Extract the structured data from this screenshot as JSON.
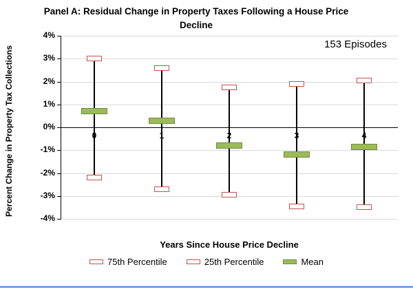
{
  "title": {
    "line1": "Panel A: Residual Change in Property Taxes Following a House Price",
    "line2": "Decline"
  },
  "annotation": "153 Episodes",
  "chart_data": {
    "type": "range-box",
    "categories": [
      "0",
      "1",
      "2",
      "3",
      "4"
    ],
    "series": [
      {
        "name": "75th Percentile",
        "values": [
          3.0,
          2.6,
          1.75,
          1.9,
          2.05
        ]
      },
      {
        "name": "25th Percentile",
        "values": [
          -2.2,
          -2.7,
          -2.95,
          -3.45,
          -3.5
        ]
      },
      {
        "name": "Mean",
        "values": [
          0.7,
          0.3,
          -0.8,
          -1.2,
          -0.85
        ]
      }
    ],
    "title": "Panel A: Residual Change in Property Taxes Following a House Price Decline",
    "xlabel": "Years Since House Price Decline",
    "ylabel": "Percent Change in Property Tax Collections",
    "ylim": [
      -4,
      4
    ],
    "ytick_step": 1,
    "ytick_format": "percent",
    "grid": true,
    "legend_position": "bottom",
    "annotation": "153 Episodes",
    "colors": {
      "percentile_border": "#c0504d",
      "mean_fill": "#9bbb59",
      "mean_border": "#71893f",
      "whisker": "#000000",
      "gridline": "#d9d9d9",
      "chart_border_bottom": "#4f81bd"
    }
  },
  "legend": [
    {
      "label": "75th Percentile",
      "swatch": "percentile"
    },
    {
      "label": "25th Percentile",
      "swatch": "percentile"
    },
    {
      "label": "Mean",
      "swatch": "mean"
    }
  ]
}
